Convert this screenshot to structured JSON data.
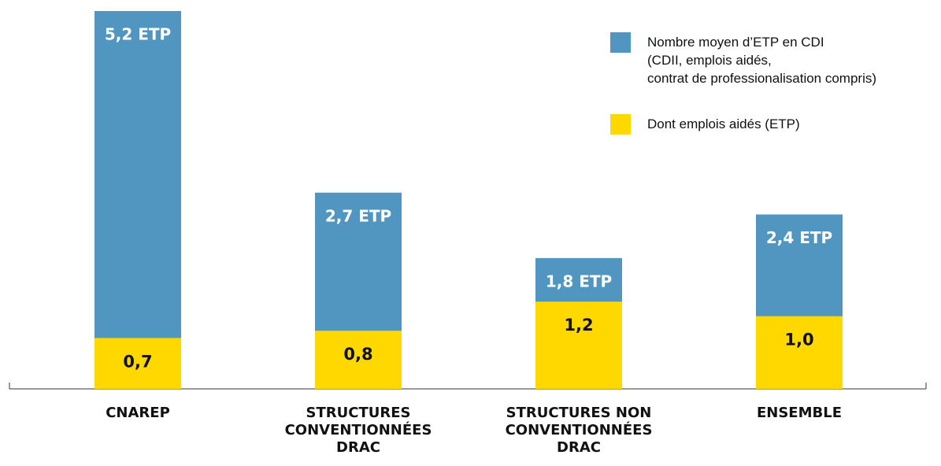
{
  "chart_data": {
    "type": "bar",
    "categories": [
      "CNAREP",
      "STRUCTURES\nCONVENTIONNÉES\nDRAC",
      "STRUCTURES NON\nCONVENTIONNÉES\nDRAC",
      "ENSEMBLE"
    ],
    "series": [
      {
        "name": "Nombre moyen d’ETP en CDI\n(CDII, emplois aidés,\ncontrat de professionalisation compris)",
        "color": "#5096c1",
        "values": [
          5.2,
          2.7,
          1.8,
          2.4
        ],
        "value_labels": [
          "5,2 ETP",
          "2,7 ETP",
          "1,8 ETP",
          "2,4 ETP"
        ]
      },
      {
        "name": "Dont emplois aidés (ETP)",
        "color": "#ffd800",
        "values": [
          0.7,
          0.8,
          1.2,
          1.0
        ],
        "value_labels": [
          "0,7",
          "0,8",
          "1,2",
          "1,0"
        ]
      }
    ],
    "ylim": [
      0,
      5.2
    ],
    "legend": "upper right"
  }
}
